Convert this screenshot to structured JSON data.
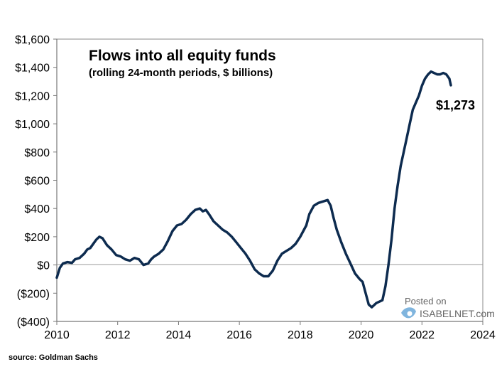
{
  "chart_data": {
    "type": "line",
    "title": "Flows into all equity funds",
    "subtitle": "(rolling 24-month periods, $ billions)",
    "xlabel": "",
    "ylabel": "",
    "xlim": [
      2010,
      2024
    ],
    "ylim": [
      -400,
      1600
    ],
    "x_ticks": [
      2010,
      2012,
      2014,
      2016,
      2018,
      2020,
      2022,
      2024
    ],
    "x_tick_labels": [
      "2010",
      "2012",
      "2014",
      "2016",
      "2018",
      "2020",
      "2022",
      "2024"
    ],
    "y_ticks": [
      -400,
      -200,
      0,
      200,
      400,
      600,
      800,
      1000,
      1200,
      1400,
      1600
    ],
    "y_tick_labels": [
      "($400)",
      "($200)",
      "$0",
      "$200",
      "$400",
      "$600",
      "$800",
      "$1,000",
      "$1,200",
      "$1,400",
      "$1,600"
    ],
    "series": [
      {
        "name": "Flows into all equity funds",
        "color": "#0d2b4f",
        "x": [
          2010.0,
          2010.1,
          2010.2,
          2010.35,
          2010.5,
          2010.6,
          2010.75,
          2010.9,
          2011.0,
          2011.1,
          2011.2,
          2011.3,
          2011.4,
          2011.5,
          2011.65,
          2011.8,
          2011.95,
          2012.1,
          2012.25,
          2012.4,
          2012.55,
          2012.7,
          2012.85,
          2013.0,
          2013.1,
          2013.2,
          2013.35,
          2013.5,
          2013.65,
          2013.8,
          2013.95,
          2014.1,
          2014.25,
          2014.4,
          2014.55,
          2014.7,
          2014.8,
          2014.9,
          2015.0,
          2015.15,
          2015.3,
          2015.45,
          2015.6,
          2015.75,
          2015.9,
          2016.05,
          2016.2,
          2016.35,
          2016.5,
          2016.65,
          2016.8,
          2016.95,
          2017.1,
          2017.25,
          2017.4,
          2017.55,
          2017.7,
          2017.85,
          2018.0,
          2018.1,
          2018.2,
          2018.3,
          2018.45,
          2018.6,
          2018.75,
          2018.9,
          2019.0,
          2019.1,
          2019.2,
          2019.35,
          2019.5,
          2019.65,
          2019.8,
          2019.95,
          2020.05,
          2020.15,
          2020.25,
          2020.35,
          2020.5,
          2020.6,
          2020.7,
          2020.8,
          2020.9,
          2021.0,
          2021.1,
          2021.2,
          2021.3,
          2021.4,
          2021.5,
          2021.6,
          2021.7,
          2021.8,
          2021.9,
          2022.0,
          2022.1,
          2022.2,
          2022.3,
          2022.4,
          2022.5,
          2022.6,
          2022.7,
          2022.8,
          2022.9,
          2022.95
        ],
        "values": [
          -90,
          -20,
          10,
          20,
          15,
          40,
          50,
          80,
          110,
          120,
          150,
          180,
          200,
          190,
          140,
          110,
          70,
          60,
          40,
          30,
          50,
          40,
          0,
          10,
          40,
          60,
          80,
          110,
          170,
          240,
          280,
          290,
          320,
          360,
          390,
          400,
          380,
          390,
          360,
          310,
          280,
          250,
          230,
          200,
          160,
          120,
          80,
          30,
          -30,
          -60,
          -80,
          -80,
          -40,
          30,
          80,
          100,
          120,
          150,
          200,
          240,
          280,
          360,
          420,
          440,
          450,
          460,
          420,
          330,
          250,
          160,
          80,
          10,
          -60,
          -100,
          -120,
          -200,
          -280,
          -300,
          -270,
          -260,
          -250,
          -150,
          0,
          180,
          400,
          560,
          700,
          800,
          900,
          1000,
          1100,
          1150,
          1200,
          1270,
          1320,
          1350,
          1370,
          1360,
          1350,
          1350,
          1360,
          1350,
          1320,
          1273
        ]
      }
    ],
    "annotations": [
      {
        "text": "$1,273",
        "x": 2022.95,
        "y": 1273
      }
    ],
    "grid": false,
    "zero_line": true
  },
  "source": "source: Goldman Sachs",
  "watermark": {
    "posted": "Posted on",
    "site": "ISABELNET.com",
    "color": "#6aa8d8"
  }
}
